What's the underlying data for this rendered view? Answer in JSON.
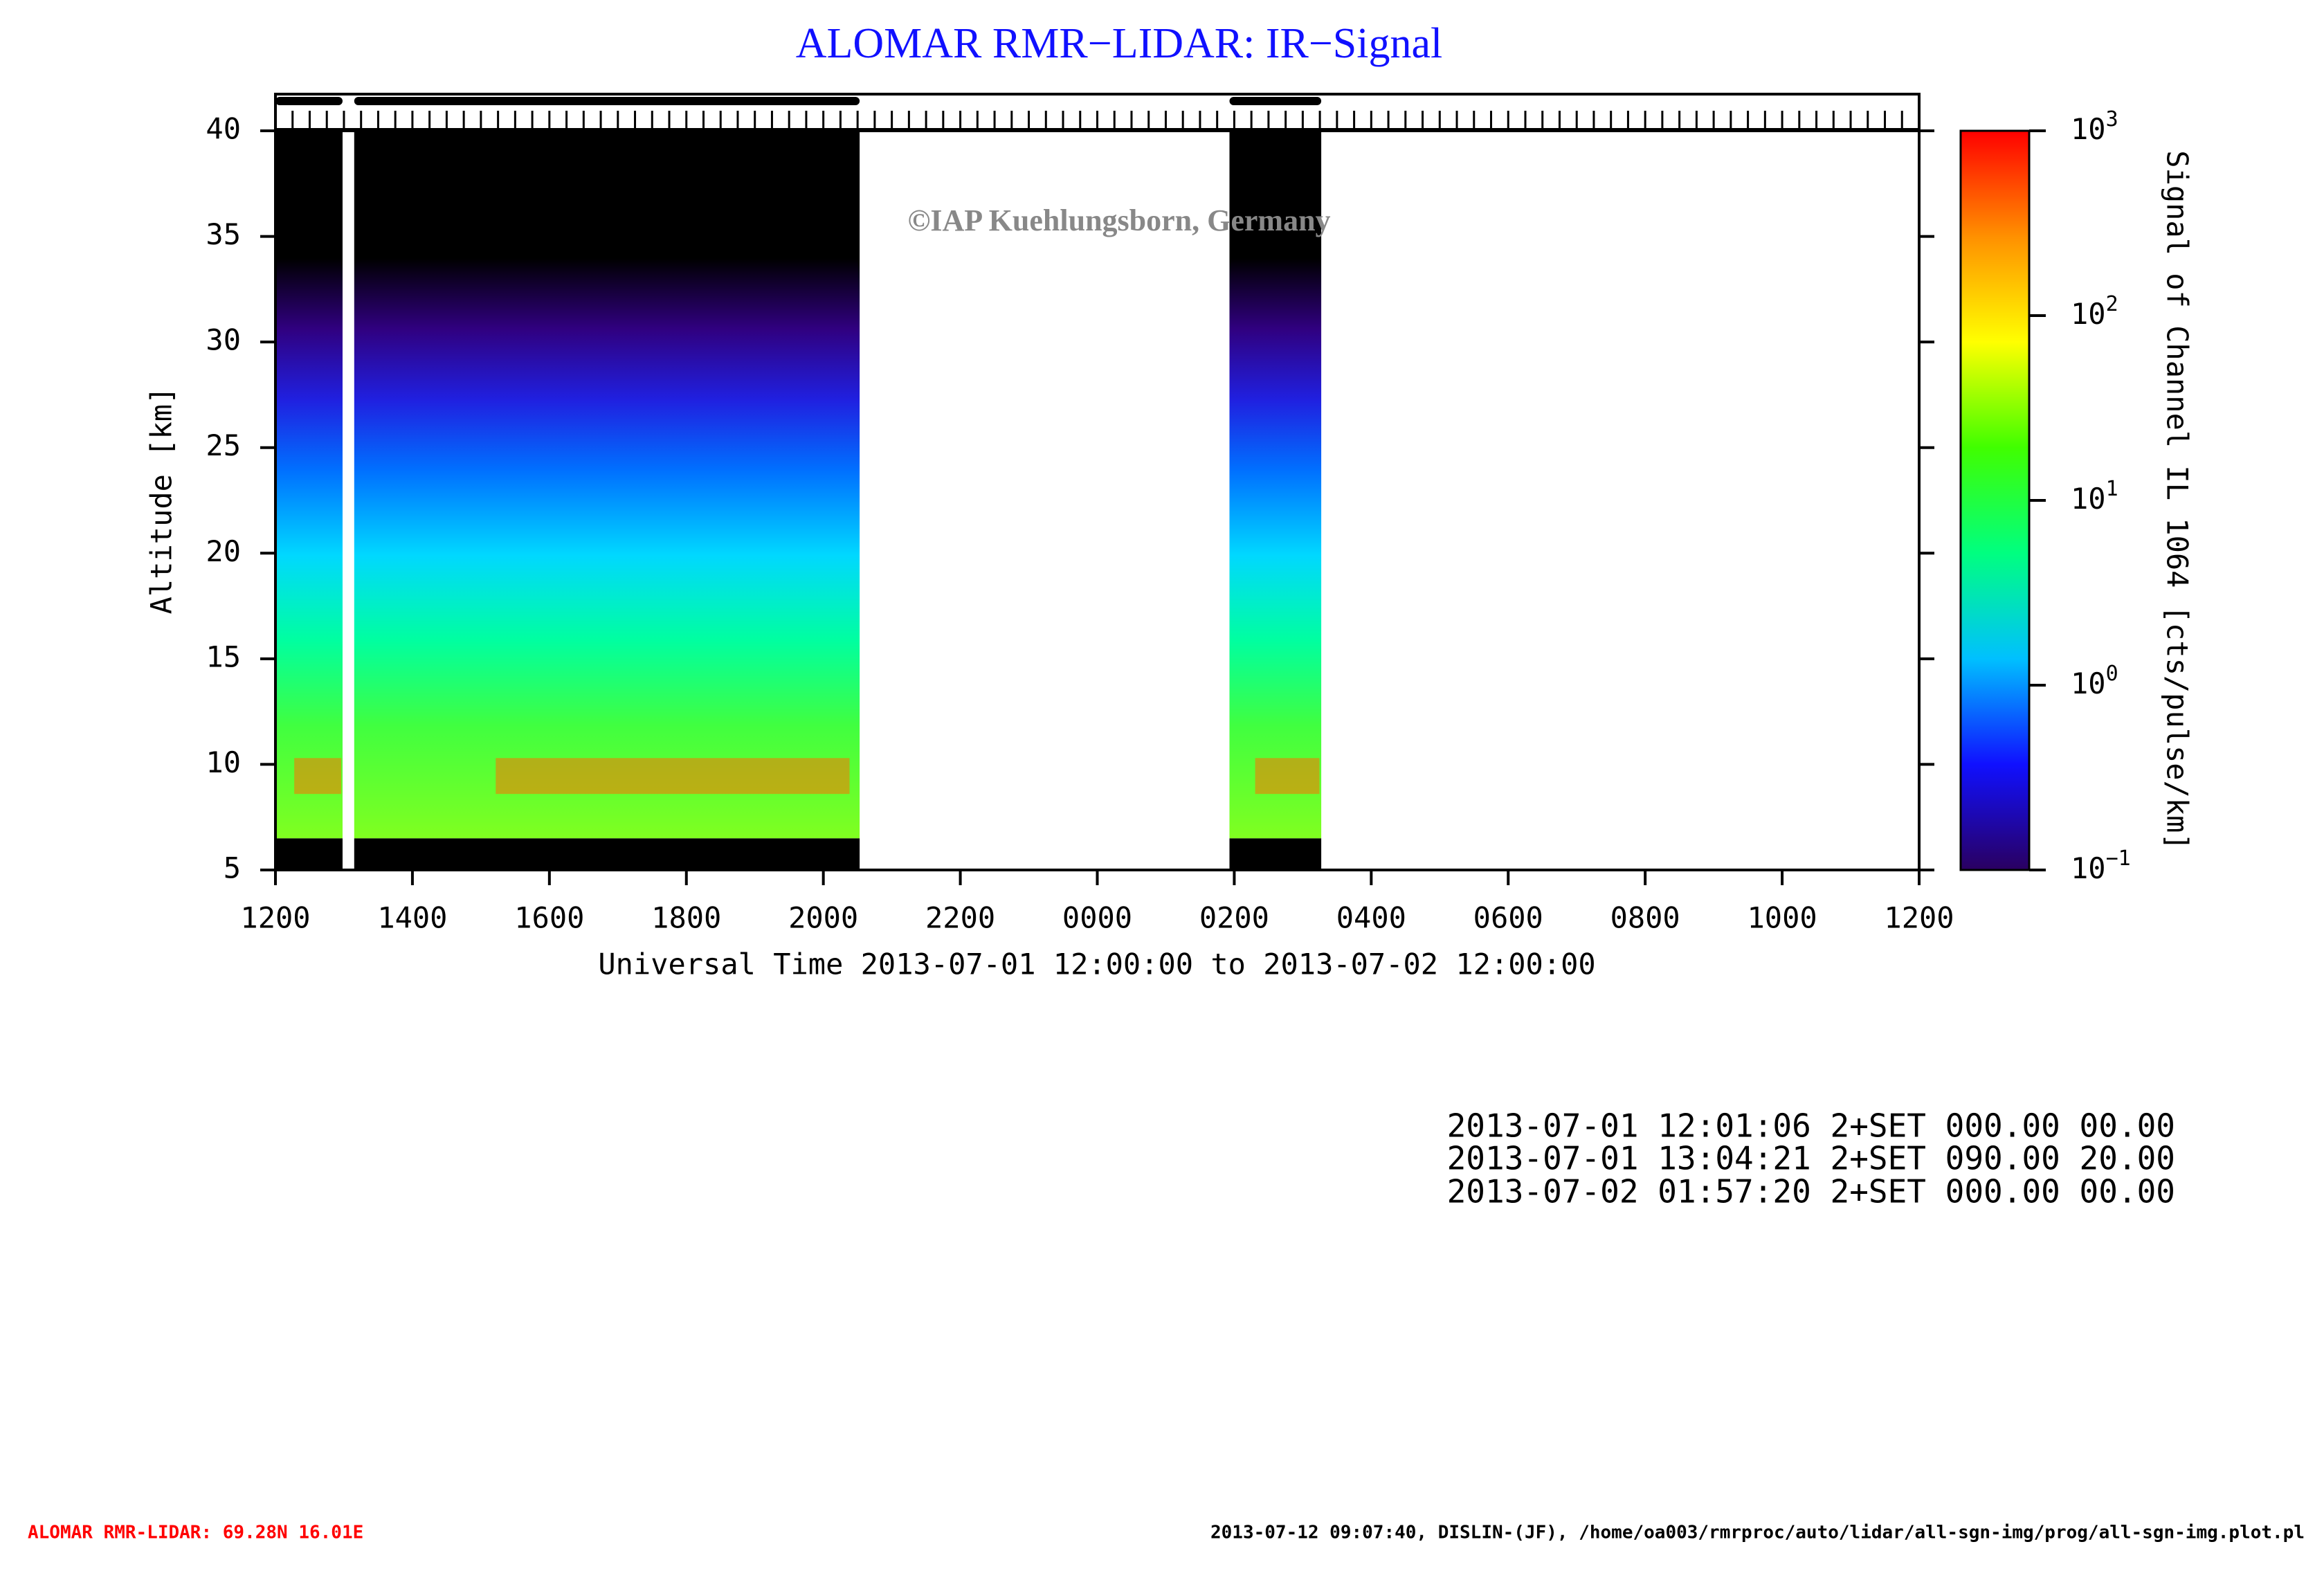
{
  "chart_data": {
    "type": "heatmap",
    "title": "ALOMAR RMR−LIDAR: IR−Signal",
    "watermark": "©IAP Kuehlungsborn, Germany",
    "xlabel": "Universal Time 2013-07-01 12:00:00 to 2013-07-02 12:00:00",
    "ylabel": "Altitude [km]",
    "colorbar_label": "Signal of Channel IL 1064 [cts/pulse/km]",
    "xlim": [
      0,
      24
    ],
    "xticks": [
      {
        "value": 0,
        "label": "1200"
      },
      {
        "value": 2,
        "label": "1400"
      },
      {
        "value": 4,
        "label": "1600"
      },
      {
        "value": 6,
        "label": "1800"
      },
      {
        "value": 8,
        "label": "2000"
      },
      {
        "value": 10,
        "label": "2200"
      },
      {
        "value": 12,
        "label": "0000"
      },
      {
        "value": 14,
        "label": "0200"
      },
      {
        "value": 16,
        "label": "0400"
      },
      {
        "value": 18,
        "label": "0600"
      },
      {
        "value": 20,
        "label": "0800"
      },
      {
        "value": 22,
        "label": "1000"
      },
      {
        "value": 24,
        "label": "1200"
      }
    ],
    "ylim": [
      5,
      40
    ],
    "yticks": [
      5,
      10,
      15,
      20,
      25,
      30,
      35,
      40
    ],
    "data_floor_km": 6.5,
    "measurement_periods": [
      {
        "start": 0,
        "end": 0.98
      },
      {
        "start": 1.15,
        "end": 8.53
      },
      {
        "start": 13.93,
        "end": 15.27
      }
    ],
    "colorbar_lim": [
      0.1,
      1000
    ],
    "colorbar_log": true,
    "colorbar_ticks": [
      {
        "value": 0.1,
        "label": "10",
        "exponent": "−1"
      },
      {
        "value": 1,
        "label": "10",
        "exponent": "0"
      },
      {
        "value": 10,
        "label": "10",
        "exponent": "1"
      },
      {
        "value": 100,
        "label": "10",
        "exponent": "2"
      },
      {
        "value": 1000,
        "label": "10",
        "exponent": "3"
      }
    ],
    "colormap": [
      "#2a0060",
      "#1010ff",
      "#00c0ff",
      "#00ff80",
      "#40ff00",
      "#ffff00",
      "#ff9000",
      "#ff0000"
    ],
    "settings_log": [
      "2013-07-01 12:01:06 2+SET 000.00 00.00",
      "2013-07-01 13:04:21 2+SET 090.00 20.00",
      "2013-07-02 01:57:20 2+SET 000.00 00.00"
    ],
    "footer_left": "ALOMAR RMR-LIDAR: 69.28N 16.01E",
    "footer_right": "2013-07-12 09:07:40, DISLIN-(JF), /home/oa003/rmrproc/auto/lidar/all-sgn-img/prog/all-sgn-img.plot.pl"
  }
}
